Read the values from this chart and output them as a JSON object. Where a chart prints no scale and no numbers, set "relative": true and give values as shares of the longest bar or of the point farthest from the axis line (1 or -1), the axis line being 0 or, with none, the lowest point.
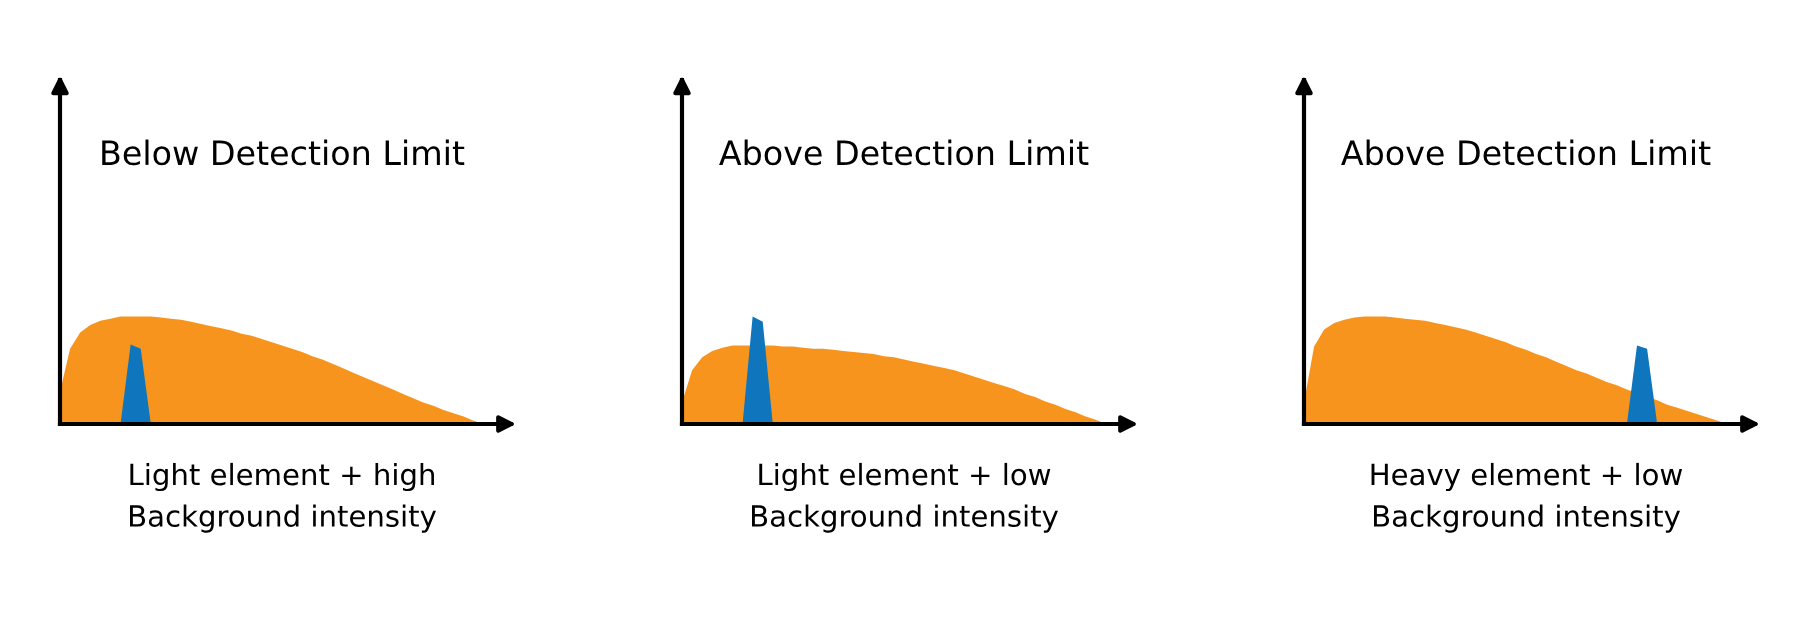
{
  "chart_data": [
    {
      "type": "area",
      "relative": true,
      "title": "Below Detection Limit",
      "xlabel": "Light element + high\nBackground intensity",
      "categories": [
        null,
        null,
        null,
        null,
        null,
        null,
        null,
        null,
        null,
        null,
        null,
        null,
        null,
        null,
        null,
        null,
        null,
        null,
        null,
        null,
        null,
        null,
        null,
        null,
        null,
        null,
        null,
        null,
        null,
        null,
        null,
        null,
        null,
        null,
        null,
        null,
        null,
        null,
        null,
        null,
        null,
        null,
        null
      ],
      "series": [
        {
          "color": "#f7941d",
          "values": [
            0.3,
            0.7,
            0.85,
            0.92,
            0.96,
            0.98,
            1,
            1,
            1,
            1,
            0.99,
            0.98,
            0.97,
            0.95,
            0.93,
            0.91,
            0.89,
            0.87,
            0.84,
            0.82,
            0.79,
            0.76,
            0.73,
            0.7,
            0.67,
            0.63,
            0.6,
            0.56,
            0.52,
            0.48,
            0.44,
            0.4,
            0.36,
            0.32,
            0.28,
            0.24,
            0.2,
            0.17,
            0.13,
            0.1,
            0.07,
            0.03,
            0
          ]
        },
        {
          "color": "#0f75bc",
          "values": [
            null,
            null,
            null,
            null,
            null,
            null,
            0,
            0.74,
            0.7,
            0,
            null,
            null,
            null,
            null,
            null,
            null,
            null,
            null,
            null,
            null,
            null,
            null,
            null,
            null,
            null,
            null,
            null,
            null,
            null,
            null,
            null,
            null,
            null,
            null,
            null,
            null,
            null,
            null,
            null,
            null,
            null,
            null,
            null
          ]
        }
      ]
    },
    {
      "type": "area",
      "relative": true,
      "title": "Above Detection Limit",
      "xlabel": "Light element + low\nBackground intensity",
      "categories": [
        null,
        null,
        null,
        null,
        null,
        null,
        null,
        null,
        null,
        null,
        null,
        null,
        null,
        null,
        null,
        null,
        null,
        null,
        null,
        null,
        null,
        null,
        null,
        null,
        null,
        null,
        null,
        null,
        null,
        null,
        null,
        null,
        null,
        null,
        null,
        null,
        null,
        null,
        null,
        null,
        null,
        null,
        null
      ],
      "series": [
        {
          "color": "#f7941d",
          "values": [
            0.2,
            0.5,
            0.62,
            0.68,
            0.71,
            0.73,
            0.73,
            0.73,
            0.73,
            0.73,
            0.72,
            0.72,
            0.71,
            0.7,
            0.7,
            0.69,
            0.68,
            0.67,
            0.66,
            0.65,
            0.63,
            0.62,
            0.6,
            0.58,
            0.56,
            0.54,
            0.52,
            0.5,
            0.47,
            0.44,
            0.41,
            0.38,
            0.35,
            0.32,
            0.28,
            0.25,
            0.21,
            0.18,
            0.14,
            0.11,
            0.07,
            0.04,
            0
          ]
        },
        {
          "color": "#0f75bc",
          "values": [
            null,
            null,
            null,
            null,
            null,
            null,
            0,
            1,
            0.95,
            0,
            null,
            null,
            null,
            null,
            null,
            null,
            null,
            null,
            null,
            null,
            null,
            null,
            null,
            null,
            null,
            null,
            null,
            null,
            null,
            null,
            null,
            null,
            null,
            null,
            null,
            null,
            null,
            null,
            null,
            null,
            null,
            null,
            null
          ]
        }
      ]
    },
    {
      "type": "area",
      "relative": true,
      "title": "Above Detection Limit",
      "xlabel": "Heavy element + low\nBackground intensity",
      "categories": [
        null,
        null,
        null,
        null,
        null,
        null,
        null,
        null,
        null,
        null,
        null,
        null,
        null,
        null,
        null,
        null,
        null,
        null,
        null,
        null,
        null,
        null,
        null,
        null,
        null,
        null,
        null,
        null,
        null,
        null,
        null,
        null,
        null,
        null,
        null,
        null,
        null,
        null,
        null,
        null,
        null,
        null,
        null
      ],
      "series": [
        {
          "color": "#f7941d",
          "values": [
            0.2,
            0.72,
            0.88,
            0.94,
            0.97,
            0.99,
            1,
            1,
            1,
            0.99,
            0.98,
            0.97,
            0.96,
            0.94,
            0.92,
            0.9,
            0.88,
            0.85,
            0.82,
            0.79,
            0.76,
            0.72,
            0.69,
            0.65,
            0.62,
            0.58,
            0.54,
            0.5,
            0.47,
            0.43,
            0.39,
            0.36,
            0.32,
            null,
            null,
            0.22,
            0.18,
            0.15,
            0.12,
            0.09,
            0.06,
            0.03,
            0
          ]
        },
        {
          "color": "#0f75bc",
          "values": [
            null,
            null,
            null,
            null,
            null,
            null,
            null,
            null,
            null,
            null,
            null,
            null,
            null,
            null,
            null,
            null,
            null,
            null,
            null,
            null,
            null,
            null,
            null,
            null,
            null,
            null,
            null,
            null,
            null,
            null,
            null,
            null,
            0,
            0.73,
            0.7,
            0,
            null,
            null,
            null,
            null,
            null,
            null,
            null
          ]
        }
      ]
    }
  ]
}
